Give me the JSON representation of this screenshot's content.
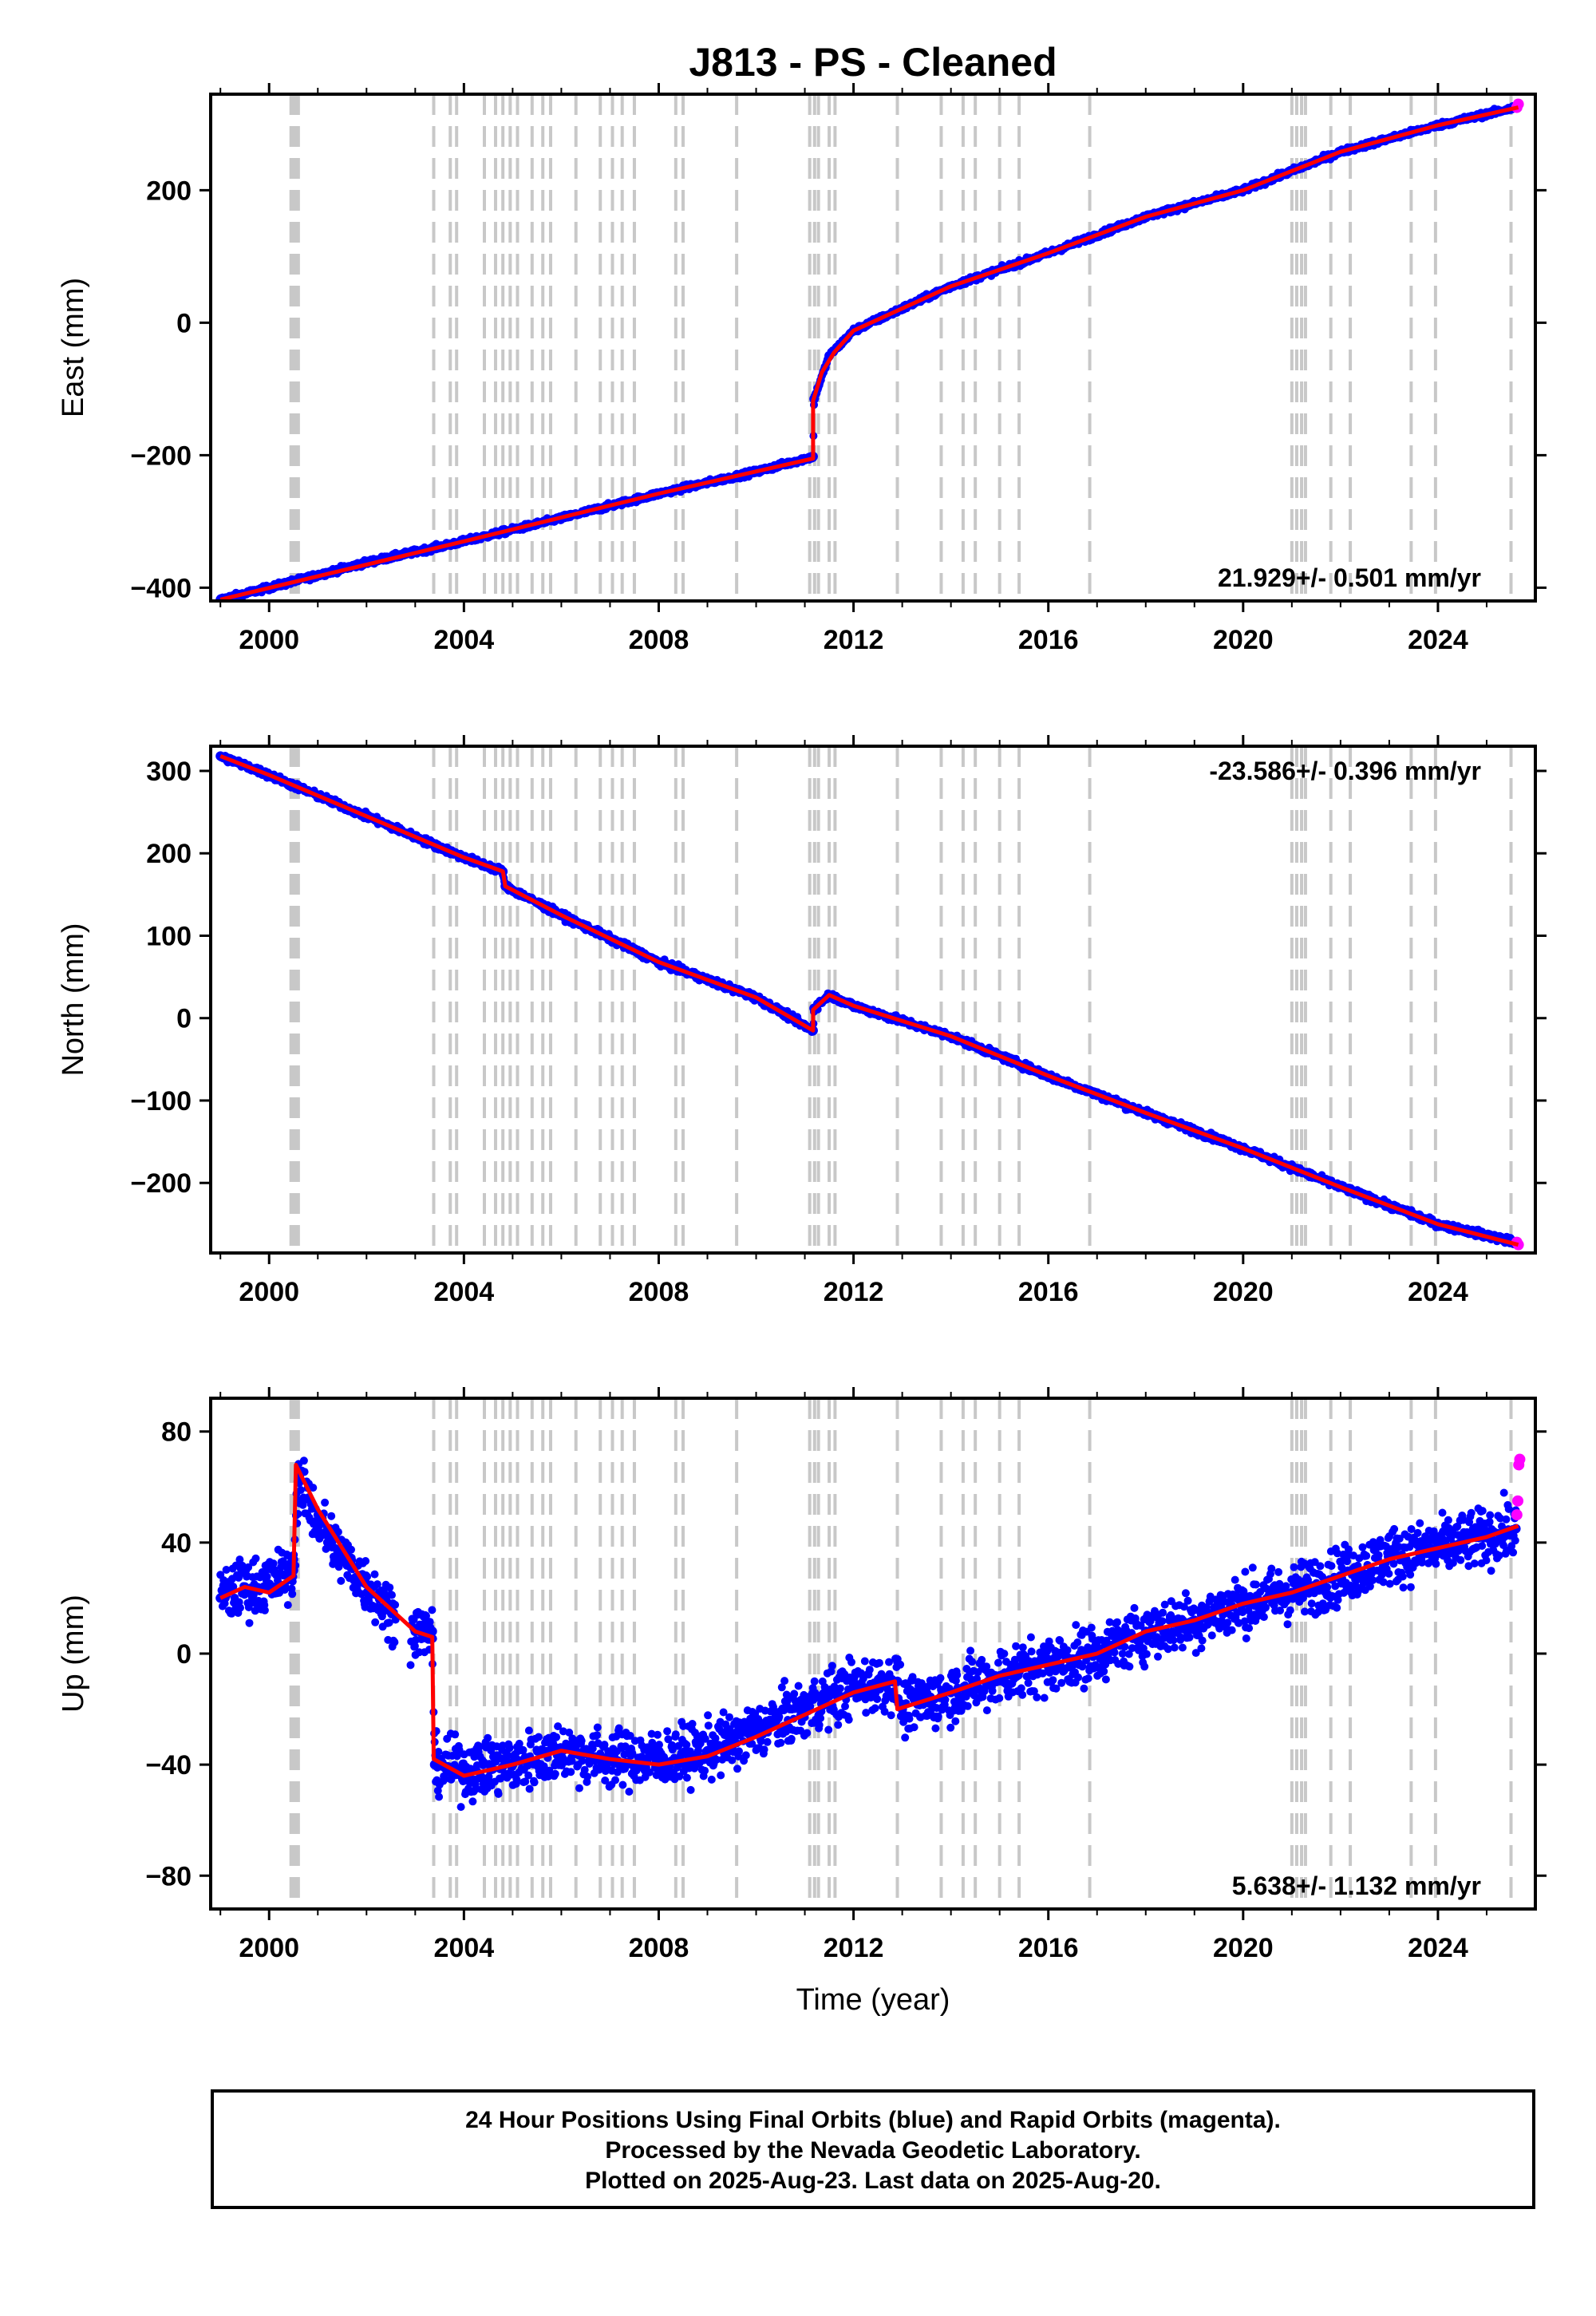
{
  "title": "J813  - PS - Cleaned",
  "xlabel": "Time (year)",
  "x_ticks": [
    2000,
    2004,
    2008,
    2012,
    2016,
    2020,
    2024
  ],
  "colors": {
    "final": "#0000ff",
    "rapid": "#ff00ff",
    "model": "#ff0000",
    "event": "#c8c8c8"
  },
  "event_lines": [
    2000.45,
    2000.5,
    2000.55,
    2000.6,
    2003.38,
    2003.72,
    2003.85,
    2004.42,
    2004.65,
    2004.8,
    2004.95,
    2005.1,
    2005.4,
    2005.62,
    2005.78,
    2006.3,
    2006.8,
    2007.05,
    2007.25,
    2007.5,
    2008.35,
    2008.5,
    2009.6,
    2011.1,
    2011.2,
    2011.28,
    2011.5,
    2011.62,
    2012.9,
    2013.8,
    2014.25,
    2014.5,
    2015.0,
    2015.4,
    2016.85,
    2021.0,
    2021.1,
    2021.2,
    2021.28,
    2021.8,
    2022.2,
    2023.45,
    2023.95,
    2025.5
  ],
  "chart_data": [
    {
      "type": "scatter",
      "component": "East",
      "ylabel": "East (mm)",
      "ylim": [
        -420,
        345
      ],
      "xlim": [
        1998.8,
        2026.0
      ],
      "yticks": [
        -400,
        -200,
        0,
        200
      ],
      "rate_label": "21.929+/- 0.501 mm/yr",
      "rate_position": "bottom-right",
      "series": [
        {
          "name": "Final Orbits",
          "x": [
            1999.0,
            2000.0,
            2002.0,
            2004.0,
            2006.0,
            2008.0,
            2010.0,
            2011.17,
            2011.19,
            2011.5,
            2012.0,
            2014.0,
            2016.0,
            2018.0,
            2020.0,
            2022.0,
            2024.0,
            2025.6
          ],
          "y": [
            -418,
            -400,
            -362,
            -330,
            -295,
            -258,
            -225,
            -202,
            -115,
            -50,
            -12,
            55,
            105,
            160,
            200,
            258,
            298,
            325
          ]
        },
        {
          "name": "Rapid Orbits",
          "x": [
            2025.62,
            2025.65
          ],
          "y": [
            325,
            330
          ]
        }
      ],
      "model": {
        "x": [
          1999.0,
          2004.0,
          2008.0,
          2011.17,
          2011.17,
          2011.35,
          2011.6,
          2012.0,
          2014.0,
          2016.0,
          2018.0,
          2020.0,
          2022.0,
          2024.0,
          2025.65
        ],
        "y": [
          -418,
          -330,
          -258,
          -205,
          -118,
          -75,
          -45,
          -12,
          55,
          105,
          160,
          200,
          258,
          298,
          325
        ]
      }
    },
    {
      "type": "scatter",
      "component": "North",
      "ylabel": "North (mm)",
      "ylim": [
        -285,
        330
      ],
      "xlim": [
        1998.8,
        2026.0
      ],
      "yticks": [
        -200,
        -100,
        0,
        100,
        200,
        300
      ],
      "rate_label": "-23.586+/- 0.396 mm/yr",
      "rate_position": "top-right",
      "series": [
        {
          "name": "Final Orbits",
          "x": [
            1999.0,
            2000.0,
            2002.0,
            2004.0,
            2004.8,
            2004.85,
            2006.0,
            2008.0,
            2010.0,
            2011.17,
            2011.19,
            2011.5,
            2012.0,
            2014.0,
            2016.0,
            2018.0,
            2020.0,
            2022.0,
            2024.0,
            2025.6
          ],
          "y": [
            318,
            295,
            245,
            195,
            178,
            160,
            125,
            68,
            25,
            -15,
            12,
            28,
            15,
            -22,
            -70,
            -115,
            -158,
            -205,
            -250,
            -272
          ]
        },
        {
          "name": "Rapid Orbits",
          "x": [
            2025.62,
            2025.65
          ],
          "y": [
            -272,
            -275
          ]
        }
      ],
      "model": {
        "x": [
          1999.0,
          2000.0,
          2002.0,
          2004.0,
          2004.8,
          2004.85,
          2006.0,
          2008.0,
          2010.0,
          2011.17,
          2011.17,
          2011.5,
          2012.0,
          2014.0,
          2016.0,
          2018.0,
          2020.0,
          2022.0,
          2024.0,
          2025.65
        ],
        "y": [
          318,
          295,
          245,
          195,
          178,
          160,
          125,
          68,
          25,
          -15,
          10,
          28,
          15,
          -22,
          -70,
          -115,
          -158,
          -205,
          -250,
          -275
        ]
      }
    },
    {
      "type": "scatter",
      "component": "Up",
      "ylabel": "Up (mm)",
      "ylim": [
        -92,
        92
      ],
      "xlim": [
        1998.8,
        2026.0
      ],
      "yticks": [
        -80,
        -40,
        0,
        40,
        80
      ],
      "rate_label": "5.638+/- 1.132 mm/yr",
      "rate_position": "bottom-right",
      "series": [
        {
          "name": "Final Orbits",
          "x": [
            1999.0,
            1999.5,
            2000.0,
            2000.5,
            2000.6,
            2001.0,
            2001.5,
            2002.0,
            2002.5,
            2003.0,
            2003.35,
            2003.4,
            2004.0,
            2005.0,
            2006.0,
            2007.0,
            2008.0,
            2009.0,
            2010.0,
            2011.0,
            2012.0,
            2012.9,
            2013.0,
            2014.0,
            2015.0,
            2016.0,
            2017.0,
            2018.0,
            2019.0,
            2020.0,
            2021.0,
            2022.0,
            2023.0,
            2024.0,
            2025.0,
            2025.6
          ],
          "y": [
            20,
            24,
            25,
            30,
            62,
            48,
            35,
            25,
            15,
            8,
            8,
            -40,
            -42,
            -40,
            -35,
            -38,
            -38,
            -35,
            -28,
            -20,
            -12,
            -10,
            -20,
            -14,
            -8,
            -4,
            0,
            8,
            12,
            18,
            22,
            28,
            35,
            38,
            42,
            45
          ]
        },
        {
          "name": "Rapid Orbits",
          "x": [
            2025.62,
            2025.64,
            2025.66,
            2025.68
          ],
          "y": [
            50,
            55,
            68,
            70
          ]
        }
      ],
      "model": {
        "x": [
          1999.0,
          1999.5,
          2000.0,
          2000.5,
          2000.55,
          2001.0,
          2001.5,
          2002.0,
          2002.5,
          2003.0,
          2003.35,
          2003.38,
          2004.0,
          2005.0,
          2006.0,
          2007.0,
          2008.0,
          2009.0,
          2010.0,
          2011.0,
          2012.0,
          2012.85,
          2012.9,
          2014.0,
          2015.0,
          2016.0,
          2017.0,
          2018.0,
          2019.0,
          2020.0,
          2021.0,
          2022.0,
          2023.0,
          2024.0,
          2025.0,
          2025.65
        ],
        "y": [
          20,
          24,
          22,
          28,
          68,
          52,
          38,
          24,
          16,
          8,
          6,
          -38,
          -44,
          -40,
          -35,
          -38,
          -40,
          -37,
          -30,
          -22,
          -14,
          -10,
          -20,
          -14,
          -8,
          -4,
          0,
          8,
          12,
          18,
          22,
          28,
          34,
          38,
          42,
          46
        ]
      }
    }
  ],
  "footer": {
    "line1": "24 Hour Positions Using Final Orbits (blue) and Rapid Orbits (magenta).",
    "line2": "Processed by the Nevada Geodetic Laboratory.",
    "line3": "Plotted on 2025-Aug-23. Last data on 2025-Aug-20."
  }
}
